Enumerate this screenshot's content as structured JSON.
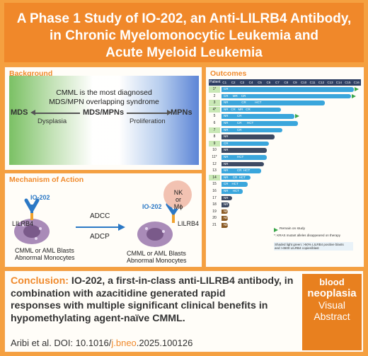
{
  "title": {
    "line1": "A Phase 1 Study of IO-202, an Anti-LILRB4 Antibody,",
    "line2": "in Chronic Myelomonocytic Leukemia and",
    "line3": "Acute Myeloid Leukemia"
  },
  "background": {
    "heading": "Background",
    "statement_line1": "CMML is the most diagnosed",
    "statement_line2": "MDS/MPN overlapping syndrome",
    "left": "MDS",
    "center": "MDS/MPNs",
    "right": "MPNs",
    "left_arrow_label": "Dysplasia",
    "right_arrow_label": "Proliferation"
  },
  "mechanism": {
    "heading": "Mechanism of Action",
    "drug_left": "IO-202",
    "drug_right": "IO-202",
    "receptor_left": "LILRB4",
    "receptor_right": "LILRB4",
    "effector": "NK or Mϕ",
    "process1": "ADCC",
    "process2": "ADCP",
    "cell_left_line1": "CMML or AML Blasts",
    "cell_left_line2": "Abnormal Monocytes",
    "cell_right_line1": "CMML or AML Blasts",
    "cell_right_line2": "Abnormal Monocytes"
  },
  "outcomes": {
    "heading": "Outcomes",
    "header_label": "Patient",
    "cycles": [
      "C1",
      "C2",
      "C3",
      "C4",
      "C5",
      "C6",
      "C7",
      "C8",
      "C9",
      "C10",
      "C11",
      "C12",
      "C13",
      "C14",
      "C15",
      "C16"
    ],
    "rows": [
      {
        "patient": "1*",
        "len": 1.0,
        "color": "#3aa6dc",
        "labels": "CR",
        "arrow": true,
        "shade": true
      },
      {
        "patient": "2",
        "len": 0.98,
        "color": "#3aa6dc",
        "labels": "CR     MR    CR",
        "arrow": true,
        "shade": false
      },
      {
        "patient": "3",
        "len": 0.78,
        "color": "#3aa6dc",
        "labels": "NR               CR          HCT",
        "arrow": false,
        "shade": true
      },
      {
        "patient": "4*",
        "len": 0.45,
        "color": "#3aa6dc",
        "labels": "NR   CR   MR   CR",
        "arrow": false,
        "shade": true
      },
      {
        "patient": "5",
        "len": 0.55,
        "color": "#3aa6dc",
        "labels": "NR          CR",
        "arrow": true,
        "shade": false
      },
      {
        "patient": "6",
        "len": 0.58,
        "color": "#3aa6dc",
        "labels": "NR          CR      HCT",
        "arrow": false,
        "shade": false
      },
      {
        "patient": "7",
        "len": 0.46,
        "color": "#3aa6dc",
        "labels": "NR          CR",
        "arrow": false,
        "shade": true
      },
      {
        "patient": "8",
        "len": 0.4,
        "color": "#3d4a63",
        "labels": "NR",
        "arrow": false,
        "shade": false
      },
      {
        "patient": "9",
        "len": 0.36,
        "color": "#3aa6dc",
        "labels": "CR",
        "arrow": false,
        "shade": true
      },
      {
        "patient": "10",
        "len": 0.34,
        "color": "#3d4a63",
        "labels": "NR",
        "arrow": false,
        "shade": false
      },
      {
        "patient": "11*",
        "len": 0.34,
        "color": "#3aa6dc",
        "labels": "NR          HCT",
        "arrow": false,
        "shade": false
      },
      {
        "patient": "12",
        "len": 0.32,
        "color": "#3d4a63",
        "labels": "NR",
        "arrow": false,
        "shade": false
      },
      {
        "patient": "13",
        "len": 0.3,
        "color": "#3aa6dc",
        "labels": "NR          CR  HCT",
        "arrow": false,
        "shade": false
      },
      {
        "patient": "14",
        "len": 0.22,
        "color": "#3aa6dc",
        "labels": "NR     CR  HCT",
        "arrow": false,
        "shade": true
      },
      {
        "patient": "15",
        "len": 0.2,
        "color": "#3aa6dc",
        "labels": "CR    HCT",
        "arrow": false,
        "shade": false
      },
      {
        "patient": "16",
        "len": 0.16,
        "color": "#3aa6dc",
        "labels": "NR     HCT",
        "arrow": false,
        "shade": false
      },
      {
        "patient": "17",
        "len": 0.08,
        "color": "#3d4a63",
        "labels": "NR",
        "arrow": false,
        "shade": false
      },
      {
        "patient": "18",
        "len": 0.06,
        "color": "#3d4a63",
        "labels": "NR",
        "arrow": false,
        "shade": false
      },
      {
        "patient": "19",
        "len": 0.05,
        "color": "#8a5a24",
        "labels": "NE",
        "arrow": false,
        "shade": false
      },
      {
        "patient": "20",
        "len": 0.05,
        "color": "#8a5a24",
        "labels": "NE",
        "arrow": false,
        "shade": false
      },
      {
        "patient": "21",
        "len": 0.05,
        "color": "#8a5a24",
        "labels": "NE",
        "arrow": false,
        "shade": false
      }
    ],
    "legend_remain": "Remain on study",
    "legend_kras": "*: KRAS mutant alleles disappeared on therapy",
    "legend_shade_line1": "Shaded light green: >50% LILRB4 positive blasts",
    "legend_shade_line2": "and >4500 LILRB4 copies/blast"
  },
  "conclusion": {
    "label": "Conclusion:",
    "line1": "IO-202, a first-in-class anti-LILRB4 antibody, in",
    "line2": "combination with azacitidine generated rapid",
    "line3": "responses with multiple significant clinical benefits in",
    "line4": "hypomethylating agent-naïve CMML.",
    "cite_prefix": "Aribi et al. DOI: 10.1016/",
    "cite_highlight": "j.bneo",
    "cite_suffix": ".2025.100126"
  },
  "badge": {
    "line1": "blood",
    "line2": "neoplasia",
    "line3": "Visual",
    "line4": "Abstract"
  },
  "colors": {
    "orange": "#f08a2c",
    "blue_bar": "#3aa6dc",
    "dark_bar": "#3d4a63",
    "ne_bar": "#8a5a24",
    "green_shade": "#c9e8b5",
    "arrow_green": "#3aa64a"
  }
}
